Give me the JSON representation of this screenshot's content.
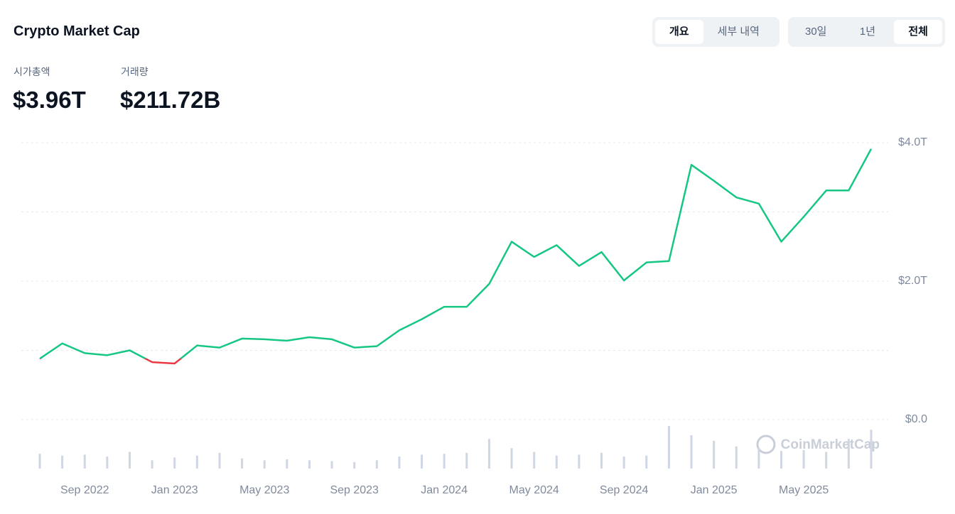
{
  "header": {
    "title": "Crypto Market Cap",
    "tabs": [
      "개요",
      "세부 내역"
    ],
    "active_tab": 0,
    "ranges": [
      "30일",
      "1년",
      "전체"
    ],
    "active_range": 2,
    "stats": [
      {
        "label": "시가총액",
        "value": "$3.96T"
      },
      {
        "label": "거래량",
        "value": "$211.72B"
      }
    ]
  },
  "chart_data": {
    "type": "line",
    "x": [
      "2022-07",
      "2022-08",
      "2022-09",
      "2022-10",
      "2022-11",
      "2022-12",
      "2023-01",
      "2023-02",
      "2023-03",
      "2023-04",
      "2023-05",
      "2023-06",
      "2023-07",
      "2023-08",
      "2023-09",
      "2023-10",
      "2023-11",
      "2023-12",
      "2024-01",
      "2024-02",
      "2024-03",
      "2024-04",
      "2024-05",
      "2024-06",
      "2024-07",
      "2024-08",
      "2024-09",
      "2024-10",
      "2024-11",
      "2024-12",
      "2025-01",
      "2025-02",
      "2025-03",
      "2025-04",
      "2025-05",
      "2025-06",
      "2025-07",
      "2025-08"
    ],
    "series": [
      {
        "name": "Market Cap",
        "values": [
          0.88,
          1.1,
          0.96,
          0.93,
          1.0,
          0.83,
          0.81,
          1.07,
          1.04,
          1.17,
          1.16,
          1.14,
          1.19,
          1.16,
          1.04,
          1.06,
          1.29,
          1.45,
          1.63,
          1.63,
          1.96,
          2.57,
          2.35,
          2.52,
          2.22,
          2.42,
          2.01,
          2.27,
          2.29,
          3.68,
          3.45,
          3.21,
          3.12,
          2.57,
          2.93,
          3.31,
          3.31,
          3.91
        ]
      },
      {
        "name": "Volume",
        "color": "#cfd6e4",
        "values": [
          80,
          70,
          75,
          65,
          90,
          45,
          60,
          70,
          85,
          55,
          45,
          50,
          45,
          40,
          35,
          45,
          65,
          75,
          80,
          85,
          160,
          110,
          90,
          70,
          75,
          85,
          65,
          70,
          230,
          180,
          150,
          120,
          110,
          95,
          100,
          90,
          160,
          210
        ]
      }
    ],
    "up_color": "#16c784",
    "down_color": "#ea3943",
    "ylim": [
      0,
      4
    ],
    "yticks": [
      {
        "value": 0,
        "label": "$0.0"
      },
      {
        "value": 2,
        "label": "$2.0T"
      },
      {
        "value": 4,
        "label": "$4.0T"
      }
    ],
    "ygrid_minor": [
      1,
      3
    ],
    "grid": true,
    "xticks": [
      {
        "value": "2022-09",
        "label": "Sep 2022"
      },
      {
        "value": "2023-01",
        "label": "Jan 2023"
      },
      {
        "value": "2023-05",
        "label": "May 2023"
      },
      {
        "value": "2023-09",
        "label": "Sep 2023"
      },
      {
        "value": "2024-01",
        "label": "Jan 2024"
      },
      {
        "value": "2024-05",
        "label": "May 2024"
      },
      {
        "value": "2024-09",
        "label": "Sep 2024"
      },
      {
        "value": "2025-01",
        "label": "Jan 2025"
      },
      {
        "value": "2025-05",
        "label": "May 2025"
      }
    ],
    "watermark": "CoinMarketCap"
  }
}
